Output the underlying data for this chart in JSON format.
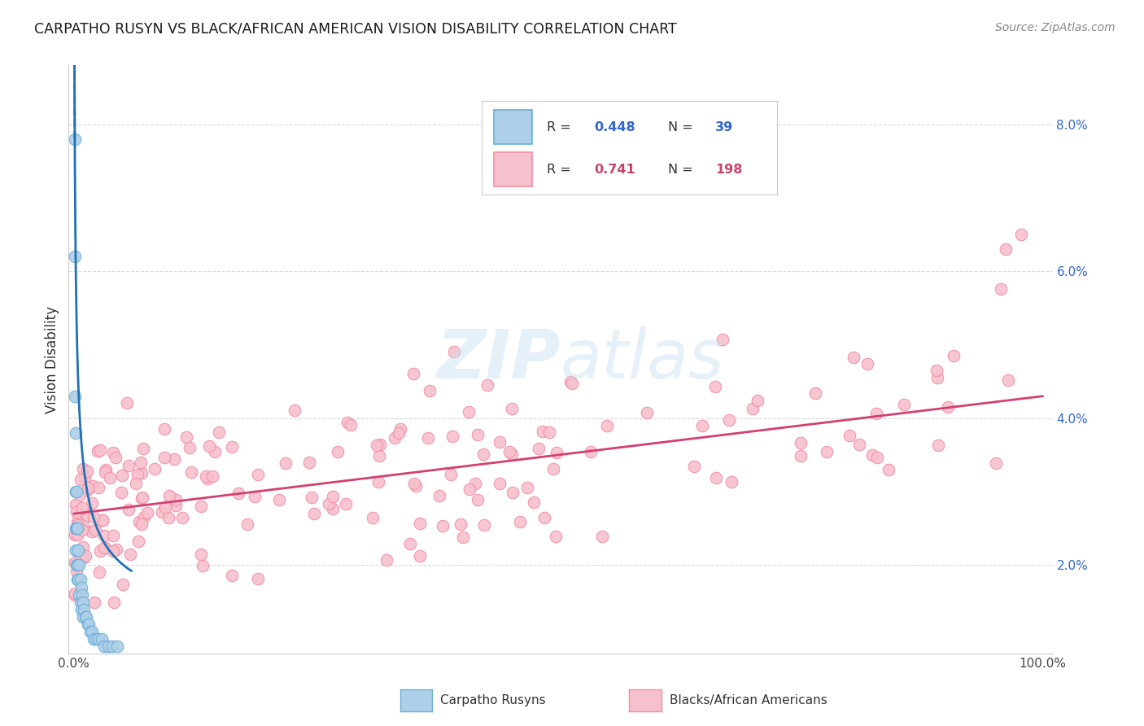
{
  "title": "CARPATHO RUSYN VS BLACK/AFRICAN AMERICAN VISION DISABILITY CORRELATION CHART",
  "source": "Source: ZipAtlas.com",
  "ylabel": "Vision Disability",
  "y_ticks": [
    0.02,
    0.04,
    0.06,
    0.08
  ],
  "y_tick_labels": [
    "2.0%",
    "4.0%",
    "6.0%",
    "8.0%"
  ],
  "x_ticks": [
    0.0,
    0.2,
    0.4,
    0.6,
    0.8,
    1.0
  ],
  "x_tick_labels": [
    "0.0%",
    "",
    "",
    "",
    "",
    "100.0%"
  ],
  "xlim": [
    -0.005,
    1.01
  ],
  "ylim": [
    0.008,
    0.088
  ],
  "blue_R": 0.448,
  "blue_N": 39,
  "pink_R": 0.741,
  "pink_N": 198,
  "legend_label_blue": "Carpatho Rusyns",
  "legend_label_pink": "Blacks/African Americans",
  "blue_marker_face": "#aecfe8",
  "blue_marker_edge": "#6baed6",
  "pink_marker_face": "#f7c0cd",
  "pink_marker_edge": "#f08fa5",
  "blue_line_color": "#2171b5",
  "pink_line_color": "#d44070",
  "watermark": "ZIPatlas",
  "background_color": "#ffffff",
  "grid_color": "#d8d8d8"
}
